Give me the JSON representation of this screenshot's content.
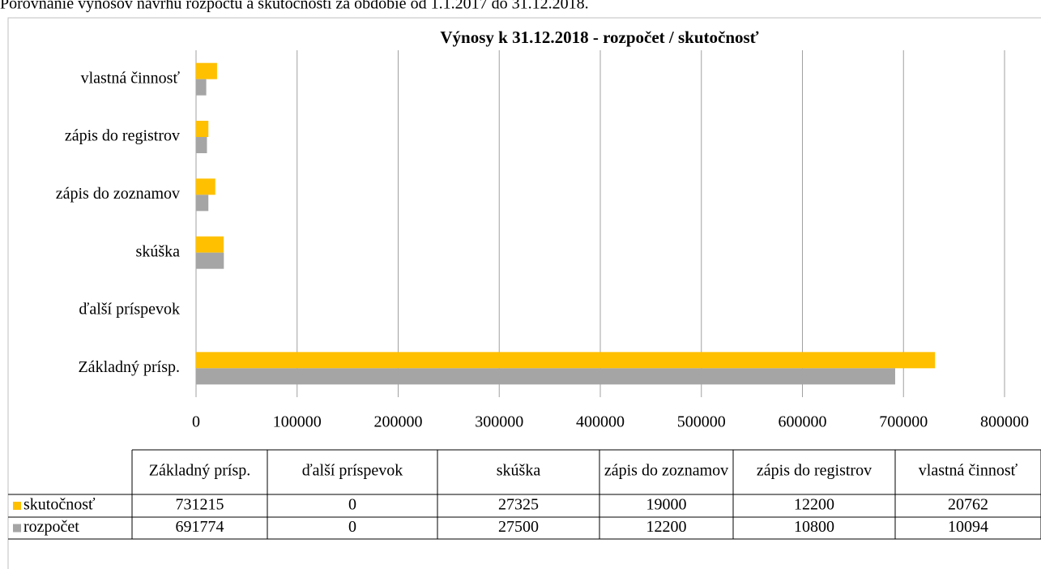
{
  "intro": "Porovnanie výnosov návrhu rozpočtu a skutočnosti za obdobie od 1.1.2017 do 31.12.2018.",
  "chart_data": {
    "type": "bar",
    "orientation": "horizontal",
    "title": "Výnosy k 31.12.2018 - rozpočet / skutočnosť",
    "categories": [
      "Základný prísp.",
      "ďalší príspevok",
      "skúška",
      "zápis do zoznamov",
      "zápis do registrov",
      "vlastná činnosť"
    ],
    "series": [
      {
        "name": "skutočnosť",
        "color": "#ffc000",
        "values": [
          731215,
          0,
          27325,
          19000,
          12200,
          20762
        ]
      },
      {
        "name": "rozpočet",
        "color": "#a5a5a5",
        "values": [
          691774,
          0,
          27500,
          12200,
          10800,
          10094
        ]
      }
    ],
    "xlim": [
      0,
      800000
    ],
    "xticks": [
      0,
      100000,
      200000,
      300000,
      400000,
      500000,
      600000,
      700000,
      800000
    ],
    "grid": true,
    "data_table": true
  }
}
